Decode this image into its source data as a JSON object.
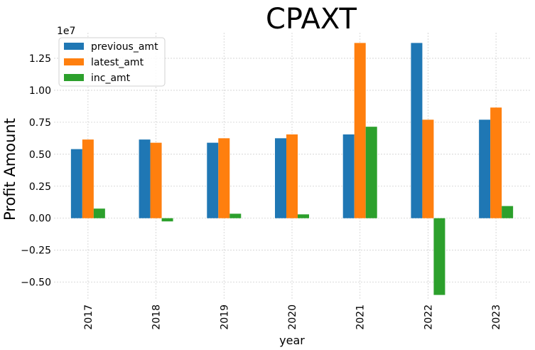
{
  "chart_data": {
    "type": "bar",
    "title": "CPAXT",
    "xlabel": "year",
    "ylabel": "Profit Amount",
    "offset_label": "1e7",
    "categories": [
      "2017",
      "2018",
      "2019",
      "2020",
      "2021",
      "2022",
      "2023"
    ],
    "series": [
      {
        "name": "previous_amt",
        "color": "#1f77b4",
        "values": [
          5400000,
          6150000,
          5900000,
          6250000,
          6550000,
          13700000,
          7700000
        ]
      },
      {
        "name": "latest_amt",
        "color": "#ff7f0e",
        "values": [
          6150000,
          5900000,
          6250000,
          6550000,
          13700000,
          7700000,
          8650000
        ]
      },
      {
        "name": "inc_amt",
        "color": "#2ca02c",
        "values": [
          750000,
          -250000,
          350000,
          300000,
          7150000,
          -6000000,
          950000
        ]
      }
    ],
    "y_ticks": [
      -5000000,
      -2500000,
      0,
      2500000,
      5000000,
      7500000,
      10000000,
      12500000
    ],
    "y_tick_labels": [
      "−0.50",
      "−0.25",
      "0.00",
      "0.25",
      "0.50",
      "0.75",
      "1.00",
      "1.25"
    ],
    "ylim": [
      -6300000,
      14500000
    ],
    "grid": true,
    "legend_position": "upper-left"
  }
}
